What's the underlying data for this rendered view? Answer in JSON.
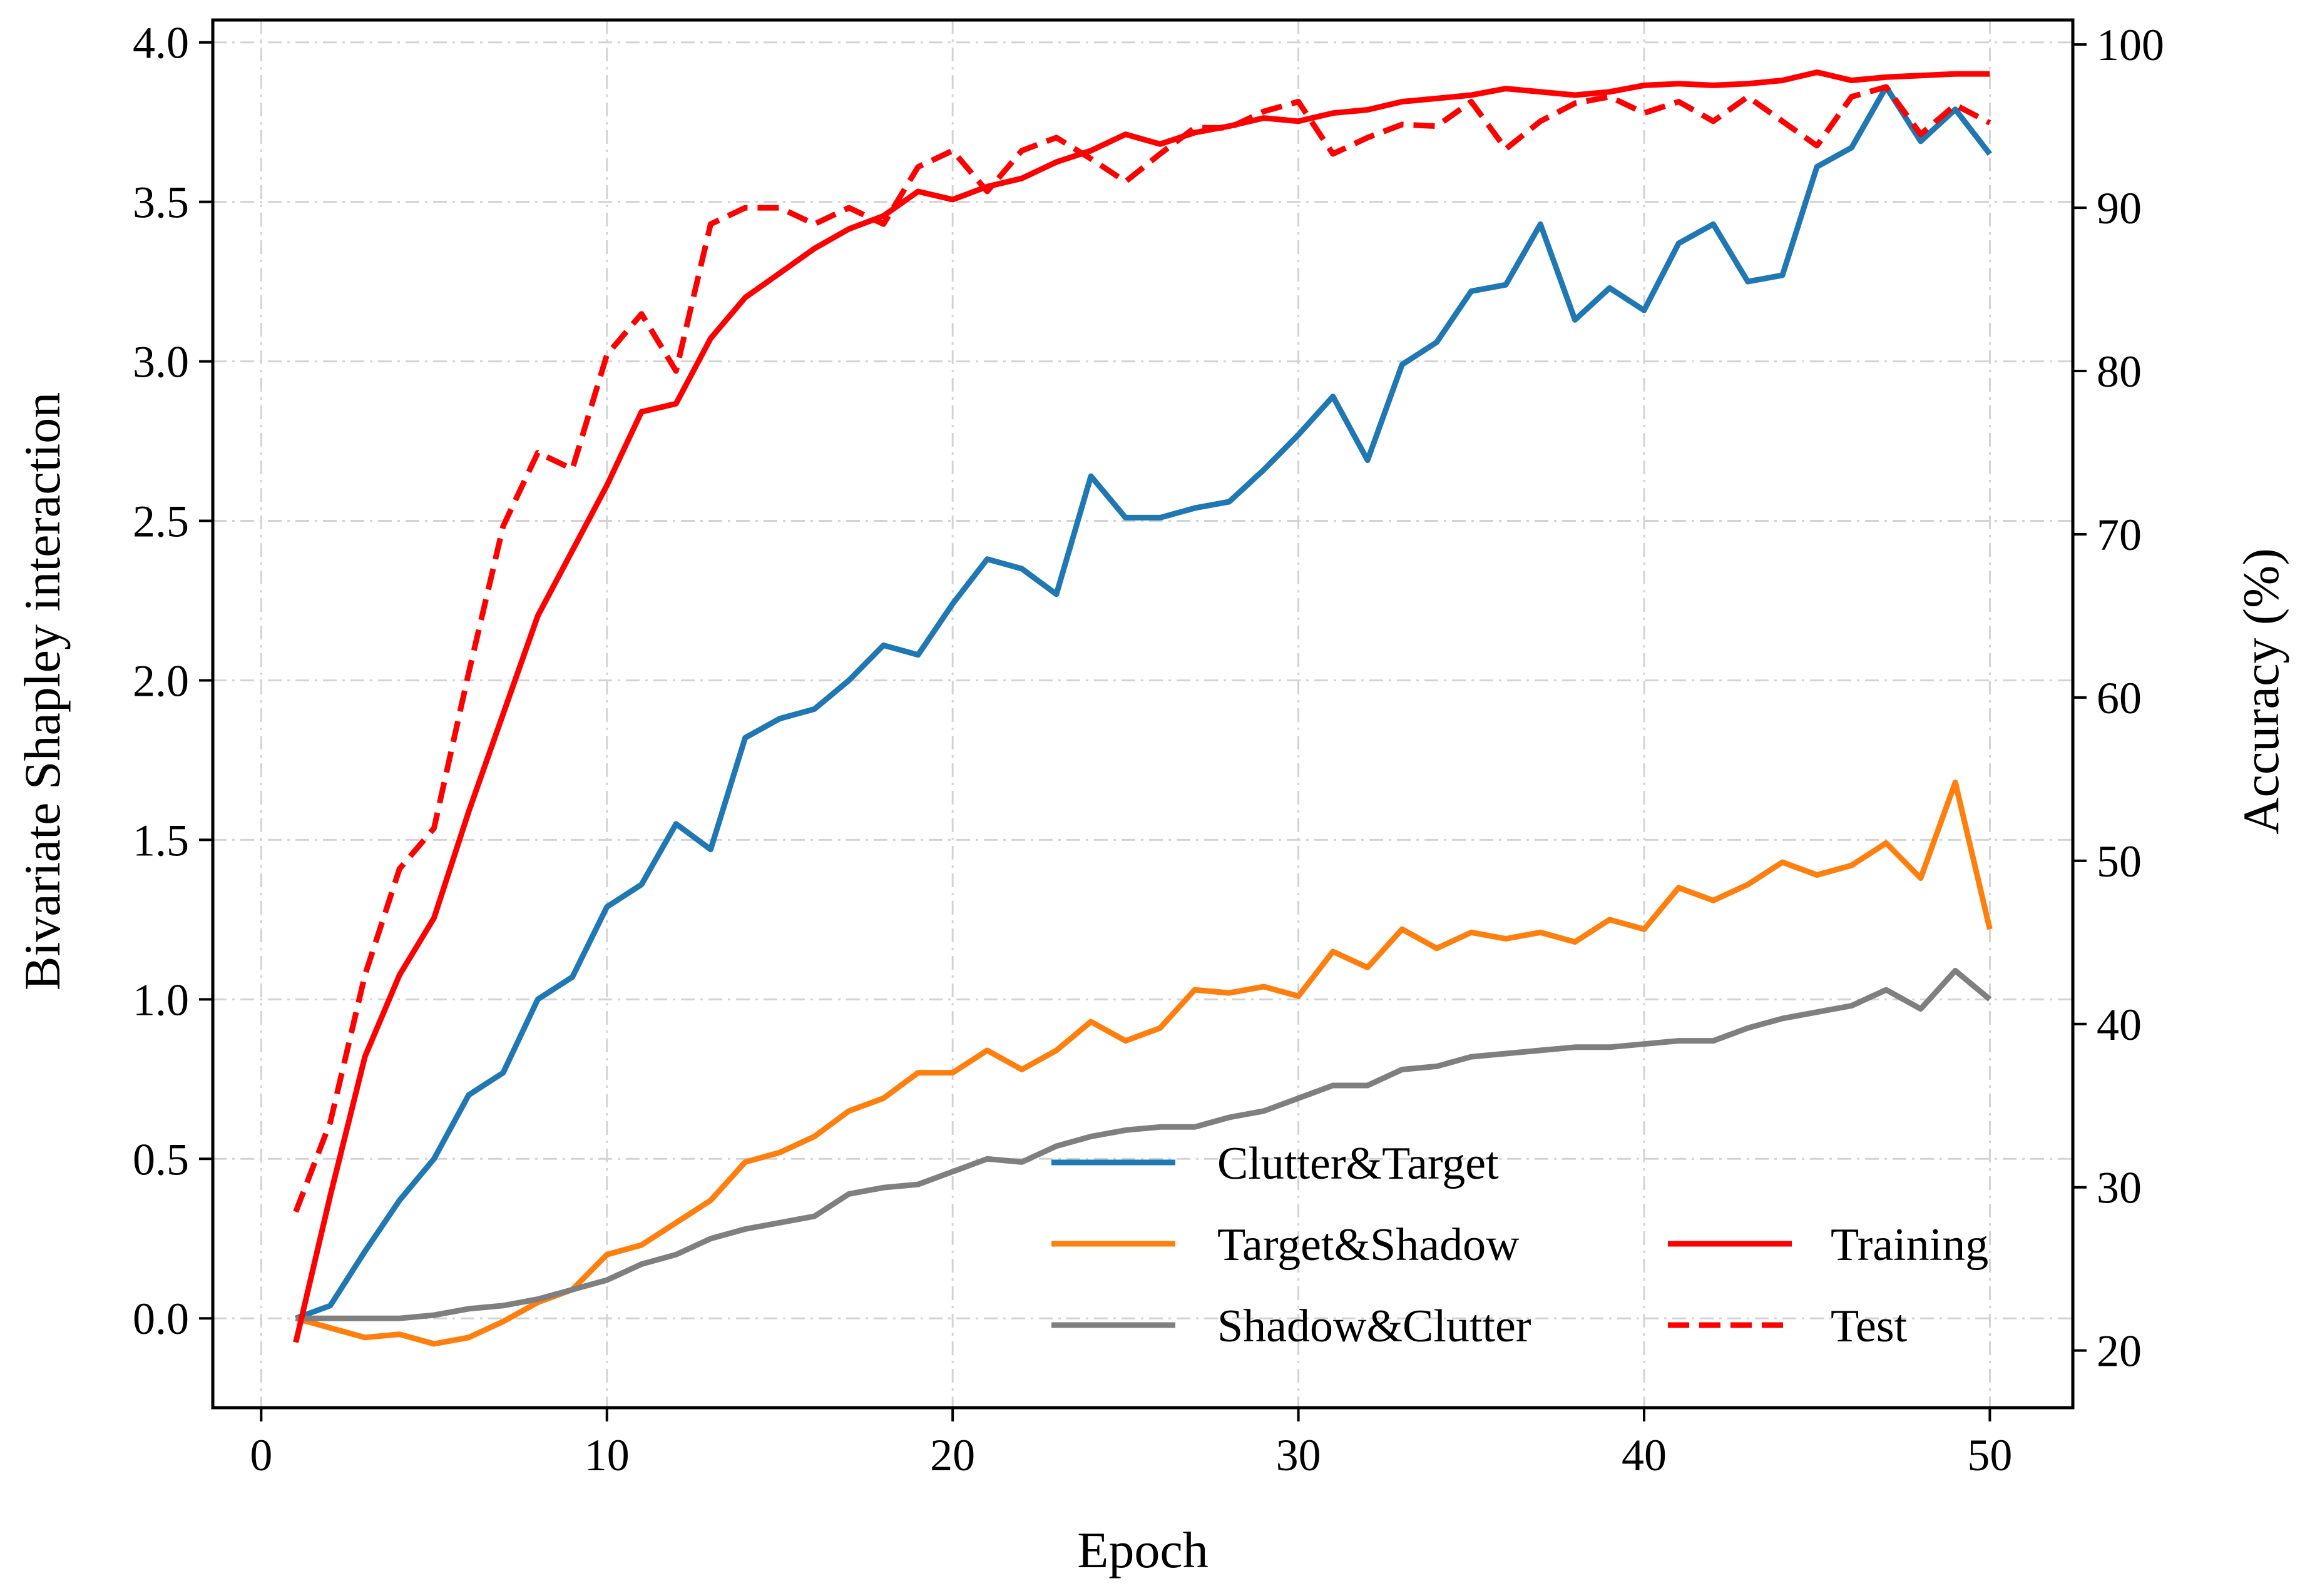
{
  "chart_data": {
    "type": "line",
    "xlabel": "Epoch",
    "ylabel_left": "Bivariate Shapley interaction",
    "ylabel_right": "Accuracy (%)",
    "xlim": [
      -1.4,
      52.4
    ],
    "ylim_left": [
      -0.28,
      4.07
    ],
    "ylim_right": [
      16.5,
      101.5
    ],
    "xticks": [
      0,
      10,
      20,
      30,
      40,
      50
    ],
    "yticks_left": [
      0.0,
      0.5,
      1.0,
      1.5,
      2.0,
      2.5,
      3.0,
      3.5,
      4.0
    ],
    "yticks_right": [
      20,
      30,
      40,
      50,
      60,
      70,
      80,
      90,
      100
    ],
    "grid": true,
    "legend_position": "lower-right",
    "colors": {
      "clutter_target": "#1f77b4",
      "target_shadow": "#ff7f0e",
      "shadow_clutter": "#7f7f7f",
      "training": "#ff0000",
      "test": "#ff0000",
      "grid": "#d3d3d3"
    },
    "x": [
      1,
      2,
      3,
      4,
      5,
      6,
      7,
      8,
      9,
      10,
      11,
      12,
      13,
      14,
      15,
      16,
      17,
      18,
      19,
      20,
      21,
      22,
      23,
      24,
      25,
      26,
      27,
      28,
      29,
      30,
      31,
      32,
      33,
      34,
      35,
      36,
      37,
      38,
      39,
      40,
      41,
      42,
      43,
      44,
      45,
      46,
      47,
      48,
      49,
      50
    ],
    "series_left": [
      {
        "name": "Clutter&Target",
        "color_key": "clutter_target",
        "dash": "solid",
        "values": [
          0.0,
          0.04,
          0.21,
          0.37,
          0.5,
          0.7,
          0.77,
          1.0,
          1.07,
          1.29,
          1.36,
          1.55,
          1.47,
          1.82,
          1.88,
          1.91,
          2.0,
          2.11,
          2.08,
          2.24,
          2.38,
          2.35,
          2.27,
          2.64,
          2.51,
          2.51,
          2.54,
          2.56,
          2.66,
          2.77,
          2.89,
          2.69,
          2.99,
          3.06,
          3.22,
          3.24,
          3.43,
          3.13,
          3.23,
          3.16,
          3.37,
          3.43,
          3.25,
          3.27,
          3.61,
          3.67,
          3.86,
          3.69,
          3.79,
          3.65
        ]
      },
      {
        "name": "Target&Shadow",
        "color_key": "target_shadow",
        "dash": "solid",
        "values": [
          0.0,
          -0.03,
          -0.06,
          -0.05,
          -0.08,
          -0.06,
          -0.01,
          0.05,
          0.09,
          0.2,
          0.23,
          0.3,
          0.37,
          0.49,
          0.52,
          0.57,
          0.65,
          0.69,
          0.77,
          0.77,
          0.84,
          0.78,
          0.84,
          0.93,
          0.87,
          0.91,
          1.03,
          1.02,
          1.04,
          1.01,
          1.15,
          1.1,
          1.22,
          1.16,
          1.21,
          1.19,
          1.21,
          1.18,
          1.25,
          1.22,
          1.35,
          1.31,
          1.36,
          1.43,
          1.39,
          1.42,
          1.49,
          1.38,
          1.68,
          1.22
        ]
      },
      {
        "name": "Shadow&Clutter",
        "color_key": "shadow_clutter",
        "dash": "solid",
        "values": [
          0.0,
          0.0,
          0.0,
          0.0,
          0.01,
          0.03,
          0.04,
          0.06,
          0.09,
          0.12,
          0.17,
          0.2,
          0.25,
          0.28,
          0.3,
          0.32,
          0.39,
          0.41,
          0.42,
          0.46,
          0.5,
          0.49,
          0.54,
          0.57,
          0.59,
          0.6,
          0.6,
          0.63,
          0.65,
          0.69,
          0.73,
          0.73,
          0.78,
          0.79,
          0.82,
          0.83,
          0.84,
          0.85,
          0.85,
          0.86,
          0.87,
          0.87,
          0.91,
          0.94,
          0.96,
          0.98,
          1.03,
          0.97,
          1.09,
          1.0
        ]
      }
    ],
    "series_right": [
      {
        "name": "Training",
        "color_key": "training",
        "dash": "solid",
        "values": [
          20.5,
          29.5,
          38.0,
          43.0,
          46.5,
          53.0,
          59.0,
          65.0,
          69.0,
          73.0,
          77.5,
          78.0,
          82.0,
          84.5,
          86.0,
          87.5,
          88.7,
          89.5,
          91.0,
          90.5,
          91.3,
          91.8,
          92.8,
          93.5,
          94.5,
          93.9,
          94.6,
          95.0,
          95.5,
          95.3,
          95.8,
          96.0,
          96.5,
          96.7,
          96.9,
          97.3,
          97.1,
          96.9,
          97.1,
          97.5,
          97.6,
          97.5,
          97.6,
          97.8,
          98.3,
          97.8,
          98.0,
          98.1,
          98.2,
          98.2
        ]
      },
      {
        "name": "Test",
        "color_key": "test",
        "dash": "dashed",
        "values": [
          28.5,
          34.0,
          43.0,
          49.5,
          52.0,
          61.5,
          70.5,
          75.0,
          74.0,
          81.0,
          83.5,
          80.0,
          89.0,
          90.0,
          90.0,
          89.0,
          90.0,
          89.0,
          92.5,
          93.5,
          91.0,
          93.5,
          94.3,
          93.0,
          91.6,
          93.3,
          94.9,
          94.9,
          95.9,
          96.5,
          93.3,
          94.3,
          95.1,
          95.0,
          96.5,
          93.6,
          95.3,
          96.4,
          96.8,
          95.8,
          96.5,
          95.3,
          96.8,
          95.3,
          93.8,
          96.8,
          97.4,
          94.5,
          96.3,
          95.2
        ]
      }
    ]
  }
}
